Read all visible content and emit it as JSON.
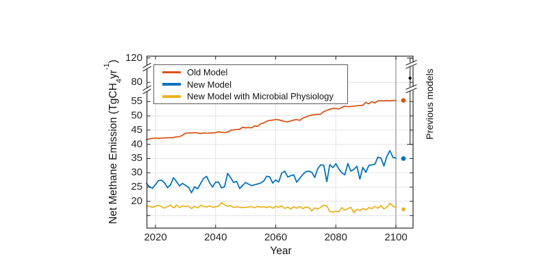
{
  "chart_data": {
    "type": "line",
    "xlabel": "Year",
    "ylabel": {
      "pre": "Net Methane Emission (TgCH",
      "sub": "4",
      "mid": "yr",
      "sup": "-1",
      "post": ")"
    },
    "x_ticks": [
      2020,
      2040,
      2060,
      2080,
      2100
    ],
    "y_ticks": [
      120,
      80,
      55,
      50,
      45,
      40,
      35,
      30,
      25,
      20
    ],
    "grid": true,
    "axis_break": true,
    "xlim": [
      2017,
      2105.7
    ],
    "vertical_line_year": 2100,
    "x": [
      2017,
      2018,
      2019,
      2020,
      2021,
      2022,
      2023,
      2024,
      2025,
      2026,
      2027,
      2028,
      2029,
      2030,
      2031,
      2032,
      2033,
      2034,
      2035,
      2036,
      2037,
      2038,
      2039,
      2040,
      2041,
      2042,
      2043,
      2044,
      2045,
      2046,
      2047,
      2048,
      2049,
      2050,
      2051,
      2052,
      2053,
      2054,
      2055,
      2056,
      2057,
      2058,
      2059,
      2060,
      2061,
      2062,
      2063,
      2064,
      2065,
      2066,
      2067,
      2068,
      2069,
      2070,
      2071,
      2072,
      2073,
      2074,
      2075,
      2076,
      2077,
      2078,
      2079,
      2080,
      2081,
      2082,
      2083,
      2084,
      2085,
      2086,
      2087,
      2088,
      2089,
      2090,
      2091,
      2092,
      2093,
      2094,
      2095,
      2096,
      2097,
      2098,
      2099,
      2100
    ],
    "series": [
      {
        "name": "Old Model",
        "color": "#d95319",
        "values": [
          41.6,
          41.9,
          42.1,
          42.2,
          42.1,
          42.2,
          42.2,
          42.3,
          42.3,
          42.4,
          42.6,
          42.7,
          43.2,
          43.9,
          44.0,
          44.0,
          44.1,
          44.0,
          43.8,
          44.0,
          43.9,
          44.0,
          44.0,
          44.1,
          44.4,
          44.2,
          44.1,
          44.3,
          44.9,
          45.1,
          45.2,
          45.3,
          46.0,
          45.8,
          45.9,
          45.8,
          46.5,
          46.3,
          47.2,
          47.5,
          48.1,
          48.4,
          48.5,
          48.7,
          48.6,
          48.3,
          48.0,
          47.9,
          48.2,
          48.5,
          48.7,
          48.4,
          49.2,
          49.6,
          50.0,
          50.3,
          50.4,
          50.5,
          50.6,
          51.5,
          51.9,
          52.3,
          52.6,
          52.6,
          52.4,
          53.0,
          53.4,
          53.2,
          53.3,
          53.4,
          53.5,
          53.6,
          53.7,
          54.7,
          54.2,
          55.0,
          54.5,
          55.3,
          55.3,
          55.3,
          55.4,
          55.3,
          55.4,
          55.4
        ]
      },
      {
        "name": "New Model",
        "color": "#0072bd",
        "values": [
          26.3,
          25.1,
          24.6,
          25.9,
          27.3,
          27.4,
          26.5,
          24.8,
          25.8,
          28.3,
          26.9,
          25.4,
          26.3,
          25.6,
          24.9,
          23.0,
          25.1,
          24.4,
          26.2,
          28.0,
          28.8,
          26.5,
          25.0,
          26.8,
          26.7,
          24.7,
          25.2,
          29.8,
          28.3,
          26.6,
          27.0,
          24.5,
          25.6,
          26.6,
          26.0,
          25.5,
          25.8,
          26.1,
          26.4,
          27.1,
          28.8,
          28.6,
          26.4,
          27.5,
          26.8,
          29.9,
          30.6,
          28.5,
          29.0,
          29.3,
          26.7,
          28.1,
          29.4,
          30.4,
          30.6,
          30.2,
          28.4,
          31.5,
          32.8,
          32.6,
          26.9,
          32.9,
          31.8,
          33.2,
          31.4,
          30.0,
          29.3,
          33.3,
          30.6,
          31.2,
          32.3,
          27.8,
          31.9,
          30.2,
          32.6,
          32.8,
          33.0,
          35.5,
          35.2,
          32.4,
          35.8,
          37.8,
          35.4,
          35.2
        ]
      },
      {
        "name": "New Model with Microbial Physiology",
        "color": "#edb120",
        "values": [
          18.4,
          18.2,
          17.9,
          18.3,
          18.6,
          18.1,
          17.6,
          18.2,
          18.6,
          17.7,
          18.7,
          17.8,
          18.4,
          18.1,
          18.3,
          17.4,
          18.3,
          17.7,
          18.6,
          18.2,
          18.0,
          18.4,
          17.9,
          18.1,
          18.3,
          19.5,
          18.8,
          18.2,
          18.5,
          17.8,
          18.1,
          17.9,
          17.8,
          17.9,
          18.0,
          18.2,
          17.7,
          18.3,
          17.9,
          18.1,
          17.8,
          18.2,
          17.6,
          18.3,
          17.9,
          18.4,
          17.5,
          18.0,
          17.3,
          18.1,
          17.6,
          18.2,
          17.4,
          18.0,
          17.8,
          16.6,
          17.7,
          17.3,
          17.9,
          18.6,
          18.4,
          16.4,
          16.2,
          16.5,
          16.3,
          17.8,
          16.9,
          17.4,
          17.9,
          16.0,
          17.2,
          16.7,
          17.5,
          17.0,
          17.8,
          17.4,
          18.2,
          17.6,
          18.5,
          17.3,
          18.0,
          19.3,
          18.3,
          17.8
        ]
      }
    ],
    "end_markers": [
      {
        "series": "Old Model",
        "color": "#d95319",
        "x_year": 2102.5,
        "value": 55.4
      },
      {
        "series": "New Model",
        "color": "#0072bd",
        "x_year": 2102.5,
        "value": 35.0
      },
      {
        "series": "New Model with Microbial Physiology",
        "color": "#edb120",
        "x_year": 2102.5,
        "value": 17.2
      }
    ],
    "error_bar": {
      "label": "Previous models",
      "x_year": 2104.7,
      "low": 40,
      "high": 120,
      "center": 87,
      "color": "#4d4d4d",
      "marker_color": "#000000"
    },
    "legend_position": "top-left",
    "colors": {
      "grid": "#e2e2e2",
      "axis": "#262626",
      "vertical_line": "#a6a6a6"
    }
  }
}
